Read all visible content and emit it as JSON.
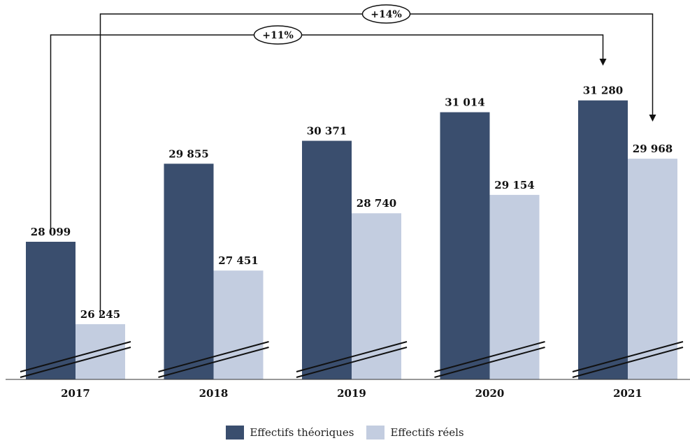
{
  "chart_data": {
    "type": "bar",
    "categories": [
      "2017",
      "2018",
      "2019",
      "2020",
      "2021"
    ],
    "series": [
      {
        "name": "Effectifs théoriques",
        "values": [
          28099,
          29855,
          30371,
          31014,
          31280
        ],
        "labels": [
          "28 099",
          "29 855",
          "30 371",
          "31 014",
          "31 280"
        ],
        "color": "#3a4e6e"
      },
      {
        "name": "Effectifs réels",
        "values": [
          26245,
          27451,
          28740,
          29154,
          29968
        ],
        "labels": [
          "26 245",
          "27 451",
          "28 740",
          "29 154",
          "29 968"
        ],
        "color": "#c3cde0"
      }
    ],
    "axis_break": true,
    "grid": false,
    "legend_position": "bottom-center",
    "annotations": [
      {
        "text": "+14%",
        "from_category": "2017",
        "from_series": "Effectifs réels",
        "to_category": "2021",
        "to_series": "Effectifs réels"
      },
      {
        "text": "+11%",
        "from_category": "2017",
        "from_series": "Effectifs théoriques",
        "to_category": "2021",
        "to_series": "Effectifs théoriques"
      }
    ]
  }
}
